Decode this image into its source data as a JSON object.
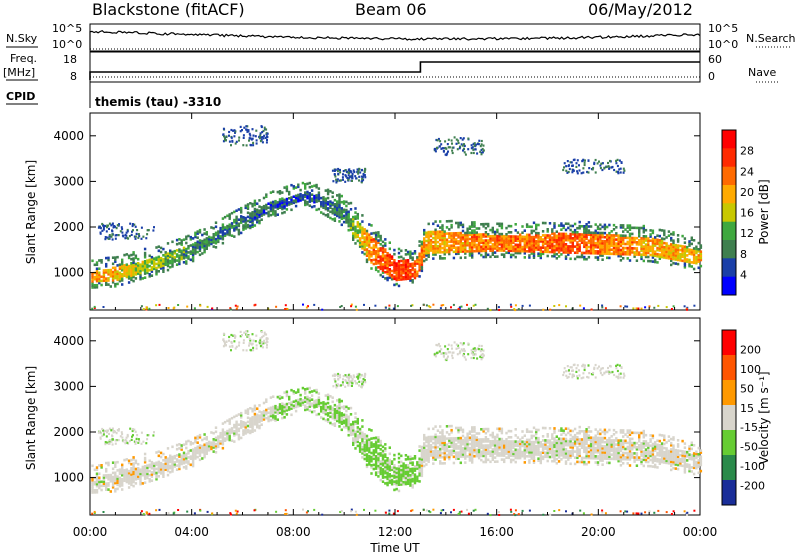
{
  "header": {
    "station": "Blackstone (fitACF)",
    "beam": "Beam 06",
    "date": "06/May/2012"
  },
  "status": {
    "nsky_label": "N.Sky",
    "nsearch_label": "N.Search",
    "freq_label": "Freq.",
    "freq_unit": "[MHz]",
    "nave_label": "Nave",
    "cpid_label": "CPID",
    "cpid_text": "themis (tau) -3310",
    "noise_ticks": [
      "10^5",
      "10^0"
    ],
    "freq_ticks": [
      "18",
      "8"
    ],
    "nave_ticks": [
      "60",
      "0"
    ]
  },
  "colors": {
    "power_scale": [
      "#0000ff",
      "#1a3fa8",
      "#3f7f4f",
      "#3fa83f",
      "#c8c800",
      "#ffaa00",
      "#ff6a00",
      "#ff2a00",
      "#ff0000"
    ],
    "velocity_scale": [
      "#ff0000",
      "#ff5500",
      "#ff9900",
      "#d8d5cc",
      "#66cc33",
      "#2a8a4a",
      "#1a2e99"
    ]
  },
  "chart_data": [
    {
      "type": "heatmap",
      "title": "Power",
      "ylabel": "Slant Range [km]",
      "xlabel": "",
      "colorbar_label": "Power [dB]",
      "colorbar_ticks": [
        "28",
        "24",
        "20",
        "16",
        "12",
        "8",
        "4"
      ],
      "x_ticks": [
        "00:00",
        "04:00",
        "08:00",
        "12:00",
        "16:00",
        "20:00",
        "00:00"
      ],
      "y_ticks": [
        "4000",
        "3000",
        "2000",
        "1000"
      ],
      "xlim_hours": [
        0,
        24
      ],
      "ylim_km": [
        180,
        4500
      ],
      "grid": false,
      "band": [
        {
          "t": 0.0,
          "lo": 820,
          "hi": 1050,
          "p": 22
        },
        {
          "t": 1.0,
          "lo": 850,
          "hi": 1150,
          "p": 18
        },
        {
          "t": 2.5,
          "lo": 1100,
          "hi": 1350,
          "p": 14
        },
        {
          "t": 4.0,
          "lo": 1400,
          "hi": 1650,
          "p": 10
        },
        {
          "t": 5.5,
          "lo": 1900,
          "hi": 2100,
          "p": 8
        },
        {
          "t": 7.0,
          "lo": 2350,
          "hi": 2550,
          "p": 6
        },
        {
          "t": 8.5,
          "lo": 2650,
          "hi": 2800,
          "p": 6
        },
        {
          "t": 10.0,
          "lo": 2150,
          "hi": 2450,
          "p": 8
        },
        {
          "t": 11.0,
          "lo": 1250,
          "hi": 1850,
          "p": 22
        },
        {
          "t": 12.0,
          "lo": 850,
          "hi": 1300,
          "p": 26
        },
        {
          "t": 12.8,
          "lo": 900,
          "hi": 1300,
          "p": 24
        },
        {
          "t": 13.2,
          "lo": 1450,
          "hi": 1950,
          "p": 20
        },
        {
          "t": 16.0,
          "lo": 1500,
          "hi": 1850,
          "p": 22
        },
        {
          "t": 19.0,
          "lo": 1450,
          "hi": 1900,
          "p": 24
        },
        {
          "t": 22.0,
          "lo": 1400,
          "hi": 1800,
          "p": 20
        },
        {
          "t": 24.0,
          "lo": 1200,
          "hi": 1500,
          "p": 18
        }
      ]
    },
    {
      "type": "heatmap",
      "title": "Velocity",
      "ylabel": "Slant Range [km]",
      "xlabel": "Time UT",
      "colorbar_label": "Velocity [m s⁻¹]",
      "colorbar_ticks": [
        "200",
        "100",
        "50",
        "15",
        "-15",
        "-50",
        "-100",
        "-200"
      ],
      "x_ticks": [
        "00:00",
        "04:00",
        "08:00",
        "12:00",
        "16:00",
        "20:00",
        "00:00"
      ],
      "y_ticks": [
        "4000",
        "3000",
        "2000",
        "1000"
      ],
      "xlim_hours": [
        0,
        24
      ],
      "ylim_km": [
        180,
        4500
      ],
      "grid": false
    }
  ]
}
